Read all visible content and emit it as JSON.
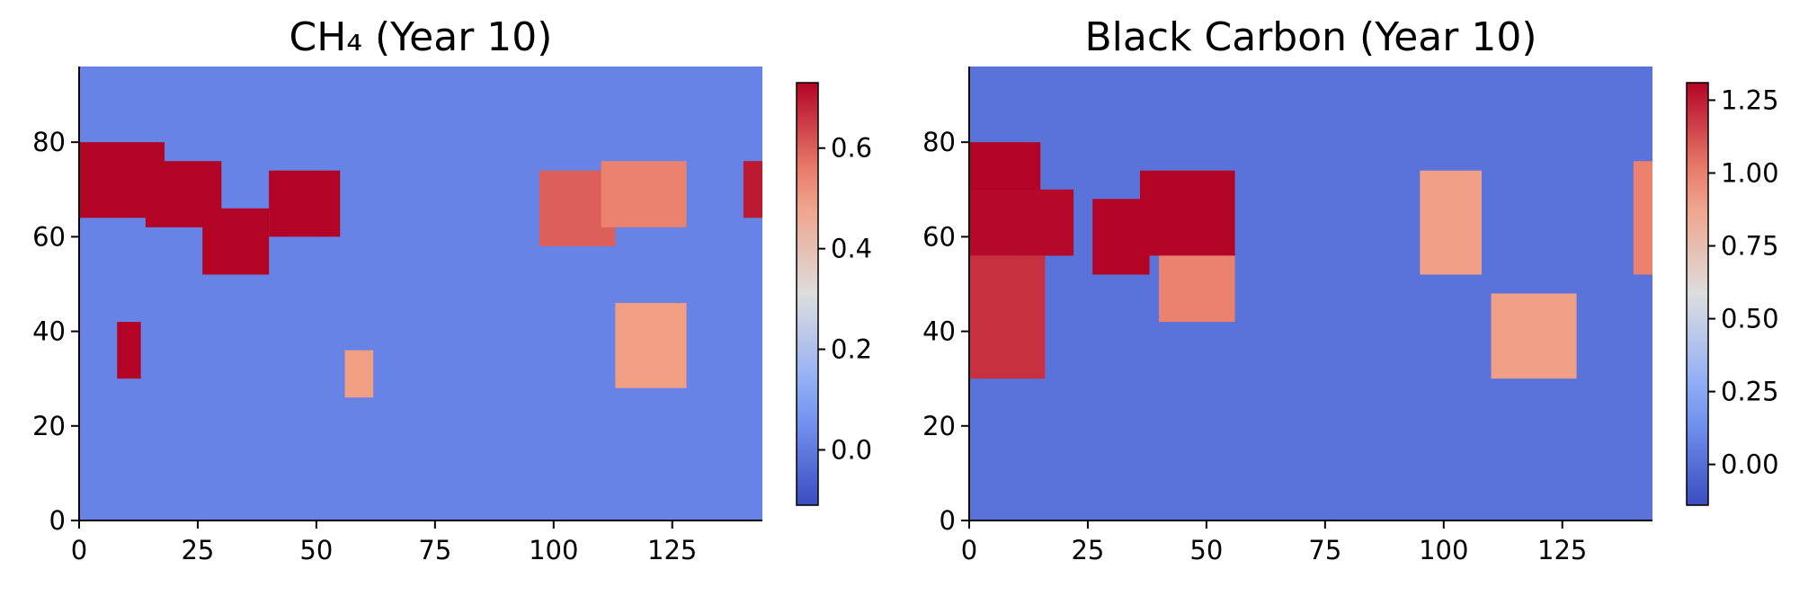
{
  "chart_data": [
    {
      "type": "heatmap",
      "title": "CH₄ (Year 10)",
      "xlabel": "",
      "ylabel": "",
      "xlim": [
        0,
        144
      ],
      "ylim": [
        0,
        96
      ],
      "xticks": [
        0,
        25,
        50,
        75,
        100,
        125
      ],
      "yticks": [
        0,
        20,
        40,
        60,
        80
      ],
      "colormap": "coolwarm",
      "color_range": [
        -0.11,
        0.73
      ],
      "colorbar_ticks": [
        "0.0",
        "0.2",
        "0.4",
        "0.6"
      ],
      "colorbar_tick_values": [
        0.0,
        0.2,
        0.4,
        0.6
      ],
      "regions": [
        {
          "x": [
            0,
            18
          ],
          "y": [
            64,
            80
          ],
          "value": 0.9
        },
        {
          "x": [
            14,
            30
          ],
          "y": [
            62,
            76
          ],
          "value": 0.8
        },
        {
          "x": [
            26,
            40
          ],
          "y": [
            52,
            66
          ],
          "value": 0.85
        },
        {
          "x": [
            40,
            55
          ],
          "y": [
            60,
            74
          ],
          "value": 0.9
        },
        {
          "x": [
            8,
            13
          ],
          "y": [
            30,
            42
          ],
          "value": 0.75
        },
        {
          "x": [
            97,
            113
          ],
          "y": [
            58,
            74
          ],
          "value": 0.6
        },
        {
          "x": [
            110,
            128
          ],
          "y": [
            62,
            76
          ],
          "value": 0.55
        },
        {
          "x": [
            113,
            128
          ],
          "y": [
            28,
            46
          ],
          "value": 0.5
        },
        {
          "x": [
            140,
            144
          ],
          "y": [
            64,
            76
          ],
          "value": 0.7
        },
        {
          "x": [
            56,
            62
          ],
          "y": [
            26,
            36
          ],
          "value": 0.5
        }
      ]
    },
    {
      "type": "heatmap",
      "title": "Black Carbon (Year 10)",
      "xlabel": "",
      "ylabel": "",
      "xlim": [
        0,
        144
      ],
      "ylim": [
        0,
        96
      ],
      "xticks": [
        0,
        25,
        50,
        75,
        100,
        125
      ],
      "yticks": [
        0,
        20,
        40,
        60,
        80
      ],
      "colormap": "coolwarm",
      "color_range": [
        -0.14,
        1.31
      ],
      "colorbar_ticks": [
        "0.00",
        "0.25",
        "0.50",
        "0.75",
        "1.00",
        "1.25"
      ],
      "colorbar_tick_values": [
        0.0,
        0.25,
        0.5,
        0.75,
        1.0,
        1.25
      ],
      "regions": [
        {
          "x": [
            0,
            15
          ],
          "y": [
            68,
            80
          ],
          "value": 1.4
        },
        {
          "x": [
            0,
            22
          ],
          "y": [
            56,
            70
          ],
          "value": 1.3
        },
        {
          "x": [
            0,
            16
          ],
          "y": [
            30,
            56
          ],
          "value": 1.2
        },
        {
          "x": [
            26,
            38
          ],
          "y": [
            52,
            68
          ],
          "value": 1.4
        },
        {
          "x": [
            36,
            56
          ],
          "y": [
            56,
            74
          ],
          "value": 1.4
        },
        {
          "x": [
            40,
            56
          ],
          "y": [
            42,
            56
          ],
          "value": 1.0
        },
        {
          "x": [
            95,
            108
          ],
          "y": [
            52,
            74
          ],
          "value": 0.9
        },
        {
          "x": [
            110,
            128
          ],
          "y": [
            30,
            48
          ],
          "value": 0.9
        },
        {
          "x": [
            140,
            144
          ],
          "y": [
            52,
            76
          ],
          "value": 1.0
        }
      ]
    }
  ]
}
